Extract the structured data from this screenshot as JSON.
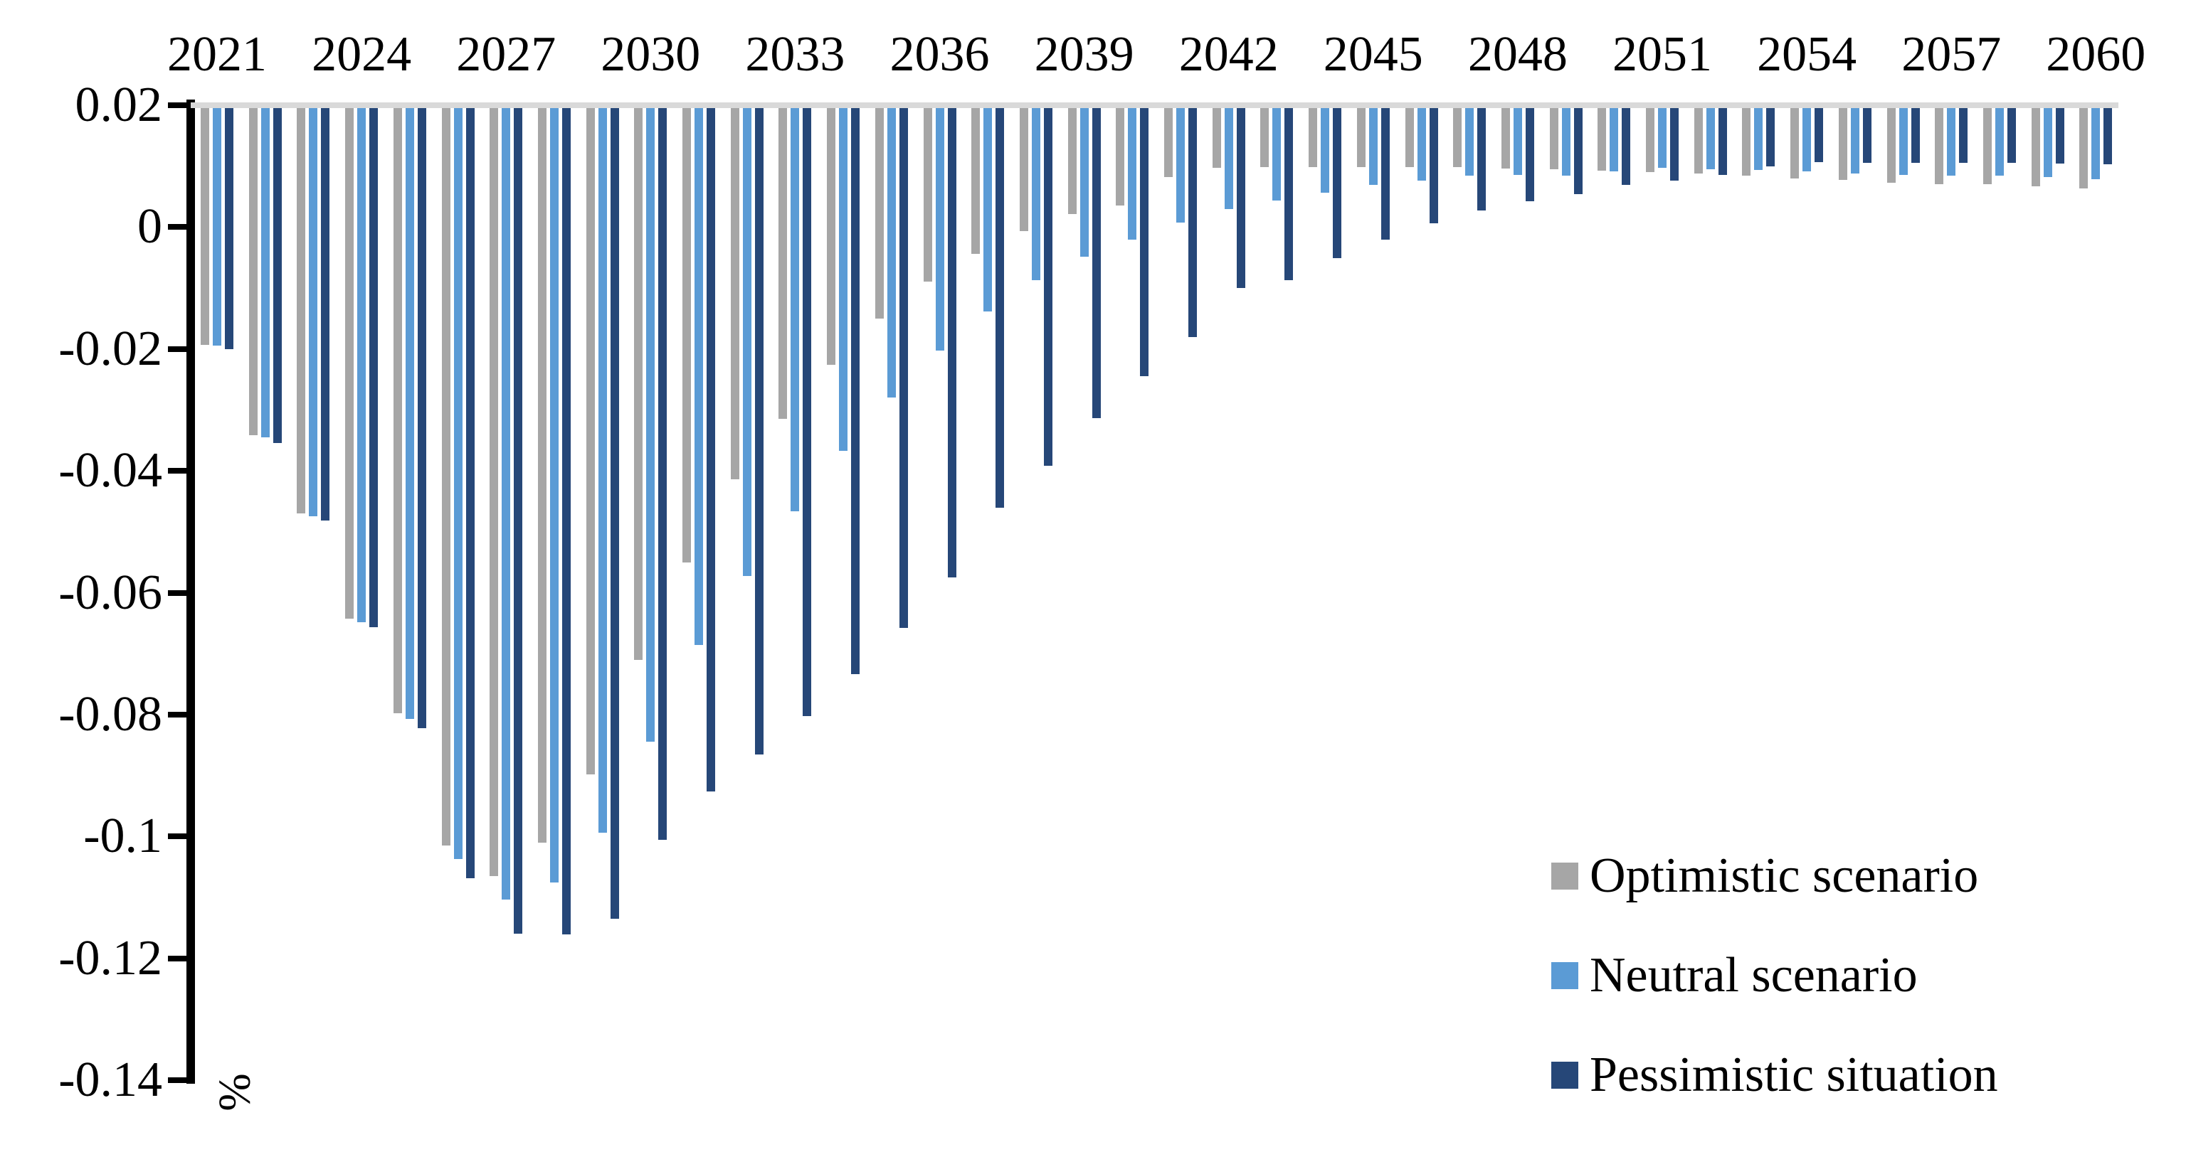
{
  "page": {
    "background": "#FFFFFF"
  },
  "chart_data": {
    "type": "bar",
    "title": "",
    "orientation": "vertical-bars-hanging-from-top-baseline",
    "baseline_value": 0.02,
    "grid": "single light gridline at 0.02 only",
    "plot_bg": "#FFFFFF",
    "gridline_color": "#D9D9D9",
    "axis_color": "#000000",
    "y_axis": {
      "unit_label": "%",
      "min": -0.14,
      "max": 0.02,
      "tick_values": [
        0.02,
        0,
        -0.02,
        -0.04,
        -0.06,
        -0.08,
        -0.1,
        -0.12,
        -0.14
      ],
      "tick_labels": [
        "0.02",
        "0",
        "-0.02",
        "-0.04",
        "-0.06",
        "-0.08",
        "-0.1",
        "-0.12",
        "-0.14"
      ]
    },
    "x_axis": {
      "position": "top",
      "tick_step": 3,
      "years": [
        2021,
        2022,
        2023,
        2024,
        2025,
        2026,
        2027,
        2028,
        2029,
        2030,
        2031,
        2032,
        2033,
        2034,
        2035,
        2036,
        2037,
        2038,
        2039,
        2040,
        2041,
        2042,
        2043,
        2044,
        2045,
        2046,
        2047,
        2048,
        2049,
        2050,
        2051,
        2052,
        2053,
        2054,
        2055,
        2056,
        2057,
        2058,
        2059,
        2060
      ],
      "tick_labels": [
        "2021",
        "2024",
        "2027",
        "2030",
        "2033",
        "2036",
        "2039",
        "2042",
        "2045",
        "2048",
        "2051",
        "2054",
        "2057",
        "2060"
      ]
    },
    "legend_position": "inside-bottom-right",
    "series": [
      {
        "name": "Optimistic scenario",
        "color": "#A6A6A6",
        "values": [
          -0.0193,
          -0.0341,
          -0.047,
          -0.0643,
          -0.0798,
          -0.1015,
          -0.1065,
          -0.101,
          -0.0898,
          -0.071,
          -0.055,
          -0.0414,
          -0.0315,
          -0.0226,
          -0.015,
          -0.0089,
          -0.0044,
          -0.0006,
          0.0022,
          0.0035,
          0.0082,
          0.0097,
          0.0098,
          0.0099,
          0.0099,
          0.0098,
          0.0098,
          0.0096,
          0.0095,
          0.0093,
          0.009,
          0.0088,
          0.0084,
          0.008,
          0.0077,
          0.0073,
          0.0071,
          0.0071,
          0.0067,
          0.0063
        ]
      },
      {
        "name": "Neutral scenario",
        "color": "#5B9BD5",
        "values": [
          -0.0195,
          -0.0345,
          -0.0475,
          -0.0648,
          -0.0807,
          -0.1037,
          -0.1103,
          -0.1076,
          -0.0994,
          -0.0845,
          -0.0686,
          -0.0573,
          -0.0466,
          -0.0367,
          -0.028,
          -0.0203,
          -0.0139,
          -0.0087,
          -0.0048,
          -0.002,
          0.0008,
          0.003,
          0.0044,
          0.0057,
          0.0069,
          0.0076,
          0.0085,
          0.0086,
          0.0085,
          0.0092,
          0.0097,
          0.0095,
          0.0094,
          0.0092,
          0.0088,
          0.0086,
          0.0085,
          0.0084,
          0.0082,
          0.0079
        ]
      },
      {
        "name": "Pessimistic situation",
        "color": "#264778",
        "values": [
          -0.02,
          -0.0354,
          -0.0481,
          -0.0657,
          -0.0822,
          -0.1068,
          -0.116,
          -0.1161,
          -0.1135,
          -0.1006,
          -0.0926,
          -0.0866,
          -0.0803,
          -0.0734,
          -0.0658,
          -0.0575,
          -0.046,
          -0.0392,
          -0.0314,
          -0.0245,
          -0.018,
          -0.01,
          -0.0087,
          -0.0051,
          -0.0021,
          0.0006,
          0.0027,
          0.0043,
          0.0054,
          0.0069,
          0.0076,
          0.0086,
          0.01,
          0.0107,
          0.0106,
          0.0105,
          0.0106,
          0.0105,
          0.0104,
          0.0103
        ]
      }
    ]
  }
}
